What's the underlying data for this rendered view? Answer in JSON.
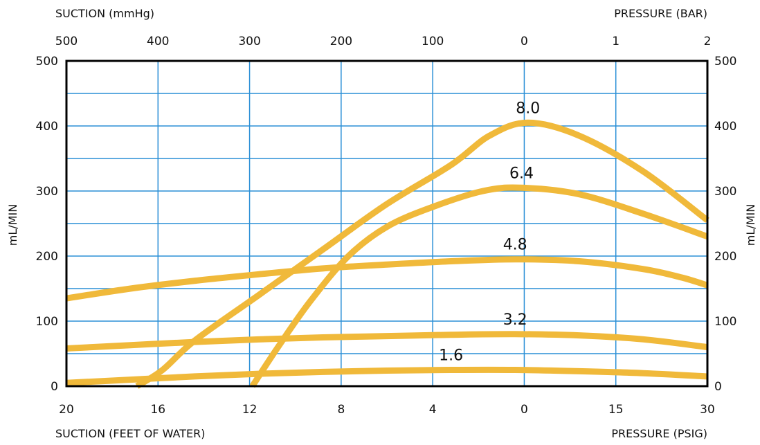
{
  "chart_data": {
    "type": "line",
    "title": "",
    "ylabel_left": "mL/MIN",
    "ylabel_right": "mL/MIN",
    "xlabel_top_left": "SUCTION (mmHg)",
    "xlabel_top_right": "PRESSURE (BAR)",
    "xlabel_bottom_left": "SUCTION (FEET OF WATER)",
    "xlabel_bottom_right": "PRESSURE (PSIG)",
    "ylim": [
      0,
      500
    ],
    "y_ticks": [
      "0",
      "100",
      "200",
      "300",
      "400",
      "500"
    ],
    "x_ticks_bottom": [
      "20",
      "16",
      "12",
      "8",
      "4",
      "0",
      "15",
      "30"
    ],
    "x_ticks_top": [
      "500",
      "400",
      "300",
      "200",
      "100",
      "0",
      "1",
      "2"
    ],
    "grid": true,
    "line_color": "#F0B93A",
    "x_domain": "position across the plot from left edge (0 = 20 ft suction) to right edge (1 = 30 psig)",
    "series": [
      {
        "name": "8.0",
        "points": [
          [
            0.11,
            0
          ],
          [
            0.15,
            25
          ],
          [
            0.2,
            70
          ],
          [
            0.3,
            140
          ],
          [
            0.4,
            210
          ],
          [
            0.5,
            280
          ],
          [
            0.6,
            340
          ],
          [
            0.66,
            385
          ],
          [
            0.72,
            405
          ],
          [
            0.8,
            385
          ],
          [
            0.9,
            330
          ],
          [
            1.0,
            255
          ]
        ]
      },
      {
        "name": "6.4",
        "points": [
          [
            0.29,
            0
          ],
          [
            0.33,
            60
          ],
          [
            0.38,
            130
          ],
          [
            0.44,
            200
          ],
          [
            0.5,
            245
          ],
          [
            0.57,
            275
          ],
          [
            0.65,
            300
          ],
          [
            0.71,
            305
          ],
          [
            0.8,
            295
          ],
          [
            0.9,
            265
          ],
          [
            1.0,
            230
          ]
        ]
      },
      {
        "name": "4.8",
        "points": [
          [
            0.0,
            135
          ],
          [
            0.1,
            150
          ],
          [
            0.2,
            162
          ],
          [
            0.3,
            172
          ],
          [
            0.4,
            181
          ],
          [
            0.5,
            187
          ],
          [
            0.6,
            192
          ],
          [
            0.7,
            195
          ],
          [
            0.8,
            192
          ],
          [
            0.9,
            180
          ],
          [
            0.96,
            167
          ],
          [
            1.0,
            155
          ]
        ]
      },
      {
        "name": "3.2",
        "points": [
          [
            0.0,
            58
          ],
          [
            0.1,
            63
          ],
          [
            0.2,
            68
          ],
          [
            0.3,
            72
          ],
          [
            0.4,
            75
          ],
          [
            0.5,
            77
          ],
          [
            0.6,
            79
          ],
          [
            0.7,
            80
          ],
          [
            0.8,
            78
          ],
          [
            0.9,
            72
          ],
          [
            1.0,
            60
          ]
        ]
      },
      {
        "name": "1.6",
        "points": [
          [
            0.0,
            5
          ],
          [
            0.1,
            10
          ],
          [
            0.2,
            15
          ],
          [
            0.3,
            19
          ],
          [
            0.4,
            22
          ],
          [
            0.5,
            24
          ],
          [
            0.6,
            25
          ],
          [
            0.7,
            25
          ],
          [
            0.8,
            23
          ],
          [
            0.9,
            20
          ],
          [
            1.0,
            15
          ]
        ]
      }
    ]
  }
}
